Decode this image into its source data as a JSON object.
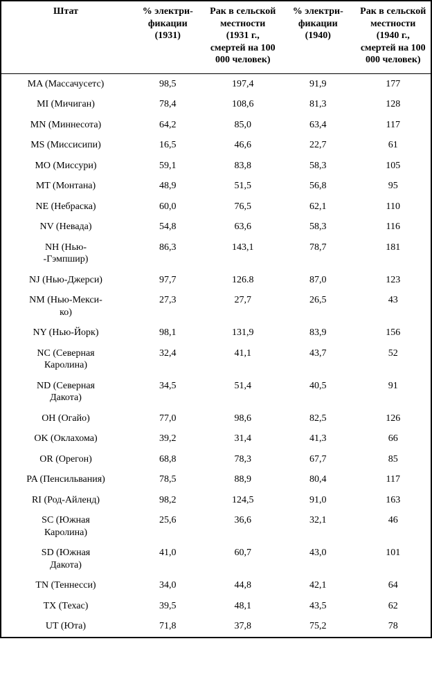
{
  "table": {
    "columns": [
      "Штат",
      "% электри-\nфикации\n(1931)",
      "Рак\nв сельской\nместности\n(1931 г.,\nсмертей\nна 100 000\nчеловек)",
      "% электри-\nфикации\n(1940)",
      "Рак\nв сельской\nместности\n(1940 г.,\nсмертей\nна 100 000\nчеловек)"
    ],
    "rows": [
      [
        "MA (Массачусетс)",
        "98,5",
        "197,4",
        "91,9",
        "177"
      ],
      [
        "MI (Мичиган)",
        "78,4",
        "108,6",
        "81,3",
        "128"
      ],
      [
        "MN (Миннесота)",
        "64,2",
        "85,0",
        "63,4",
        "117"
      ],
      [
        "MS (Миссисипи)",
        "16,5",
        "46,6",
        "22,7",
        "61"
      ],
      [
        "MO (Миссури)",
        "59,1",
        "83,8",
        "58,3",
        "105"
      ],
      [
        "MT (Монтана)",
        "48,9",
        "51,5",
        "56,8",
        "95"
      ],
      [
        "NE (Небраска)",
        "60,0",
        "76,5",
        "62,1",
        "110"
      ],
      [
        "NV (Невада)",
        "54,8",
        "63,6",
        "58,3",
        "116"
      ],
      [
        "NH (Нью-\n-Гэмпшир)",
        "86,3",
        "143,1",
        "78,7",
        "181"
      ],
      [
        "NJ (Нью-Джерси)",
        "97,7",
        "126.8",
        "87,0",
        "123"
      ],
      [
        "NM (Нью-Мекси-\nко)",
        "27,3",
        "27,7",
        "26,5",
        "43"
      ],
      [
        "NY (Нью-Йорк)",
        "98,1",
        "131,9",
        "83,9",
        "156"
      ],
      [
        "NC (Северная\nКаролина)",
        "32,4",
        "41,1",
        "43,7",
        "52"
      ],
      [
        "ND (Северная\nДакота)",
        "34,5",
        "51,4",
        "40,5",
        "91"
      ],
      [
        "OH (Огайо)",
        "77,0",
        "98,6",
        "82,5",
        "126"
      ],
      [
        "OK (Оклахома)",
        "39,2",
        "31,4",
        "41,3",
        "66"
      ],
      [
        "OR (Орегон)",
        "68,8",
        "78,3",
        "67,7",
        "85"
      ],
      [
        "PA (Пенсильвания)",
        "78,5",
        "88,9",
        "80,4",
        "117"
      ],
      [
        "RI (Род-Айленд)",
        "98,2",
        "124,5",
        "91,0",
        "163"
      ],
      [
        "SC (Южная\nКаролина)",
        "25,6",
        "36,6",
        "32,1",
        "46"
      ],
      [
        "SD (Южная\nДакота)",
        "41,0",
        "60,7",
        "43,0",
        "101"
      ],
      [
        "TN (Теннесси)",
        "34,0",
        "44,8",
        "42,1",
        "64"
      ],
      [
        "TX (Техас)",
        "39,5",
        "48,1",
        "43,5",
        "62"
      ],
      [
        "UT (Юта)",
        "71,8",
        "37,8",
        "75,2",
        "78"
      ]
    ],
    "header_fontsize_pt": 10,
    "body_fontsize_pt": 10,
    "border_color": "#000000",
    "background_color": "#ffffff",
    "text_color": "#000000",
    "column_widths_pct": [
      30,
      17.5,
      17.5,
      17.5,
      17.5
    ]
  }
}
